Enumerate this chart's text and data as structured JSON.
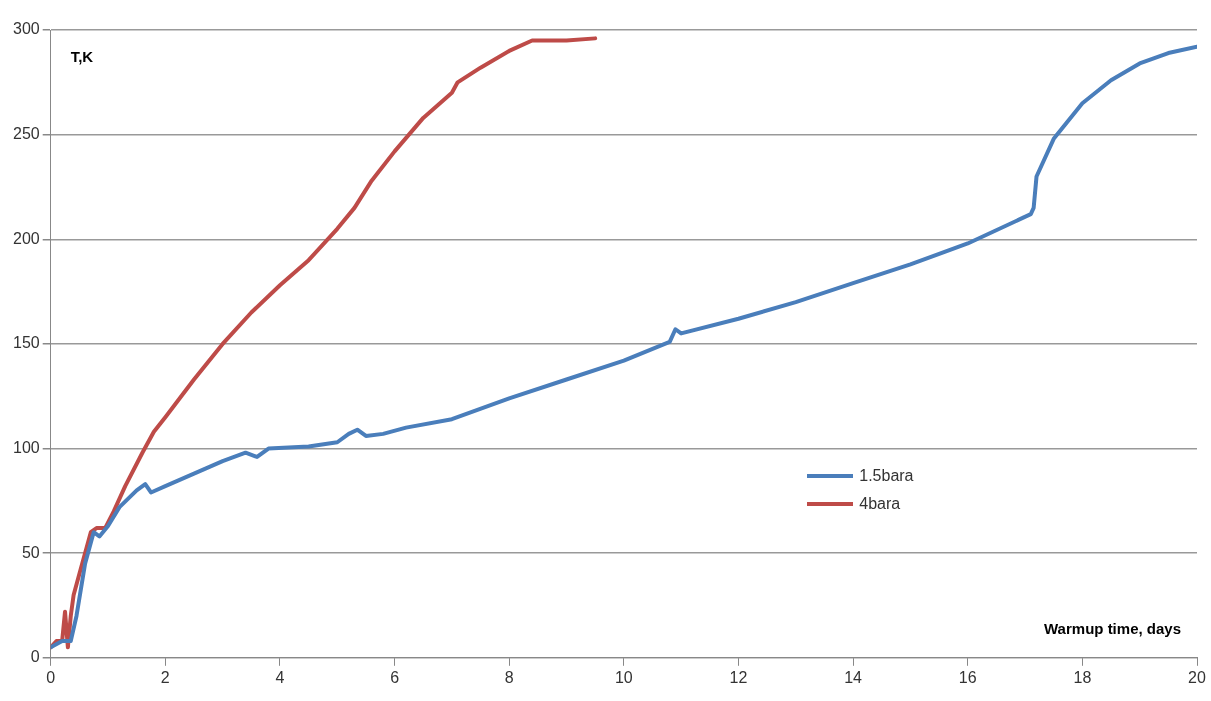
{
  "chart_data": {
    "type": "line",
    "xlabel": "Warmup time, days",
    "ylabel": "T,K",
    "xlim": [
      0,
      20
    ],
    "xticks": [
      0,
      2,
      4,
      6,
      8,
      10,
      12,
      14,
      16,
      18,
      20
    ],
    "ylim": [
      0,
      300
    ],
    "yticks": [
      0,
      50,
      100,
      150,
      200,
      250,
      300
    ],
    "grid": "y",
    "legend": "right",
    "marker": "none",
    "line_style": "solid",
    "series": [
      {
        "name": "1.5bara",
        "color": "#4a7ebb",
        "x": [
          0,
          0.2,
          0.35,
          0.45,
          0.6,
          0.75,
          0.85,
          1,
          1.2,
          1.5,
          1.65,
          1.75,
          2,
          2.5,
          3,
          3.4,
          3.6,
          3.8,
          4.5,
          5,
          5.2,
          5.35,
          5.5,
          5.8,
          6.2,
          7,
          8,
          9,
          10,
          10.8,
          10.9,
          11,
          12,
          13,
          14,
          15,
          16,
          17.1,
          17.15,
          17.2,
          17.5,
          18,
          18.5,
          19,
          19.5,
          20
        ],
        "values": [
          5,
          8,
          8,
          20,
          45,
          60,
          58,
          63,
          72,
          80,
          83,
          79,
          82,
          88,
          94,
          98,
          96,
          100,
          101,
          103,
          107,
          109,
          106,
          107,
          110,
          114,
          124,
          133,
          142,
          151,
          157,
          155,
          162,
          170,
          179,
          188,
          198,
          212,
          215,
          230,
          248,
          265,
          276,
          284,
          289,
          292
        ]
      },
      {
        "name": "4bara",
        "color": "#be4b48",
        "x": [
          0,
          0.1,
          0.2,
          0.25,
          0.3,
          0.35,
          0.4,
          0.5,
          0.7,
          0.8,
          0.95,
          1.1,
          1.3,
          1.6,
          1.8,
          2,
          2.5,
          3,
          3.5,
          4,
          4.5,
          5,
          5.3,
          5.6,
          6,
          6.5,
          7,
          7.1,
          7.5,
          8,
          8.4,
          9,
          9.5
        ],
        "values": [
          5,
          8,
          8,
          22,
          5,
          20,
          30,
          40,
          60,
          62,
          62,
          70,
          82,
          98,
          108,
          115,
          133,
          150,
          165,
          178,
          190,
          205,
          215,
          228,
          242,
          258,
          270,
          275,
          282,
          290,
          295,
          295,
          296
        ]
      }
    ]
  }
}
